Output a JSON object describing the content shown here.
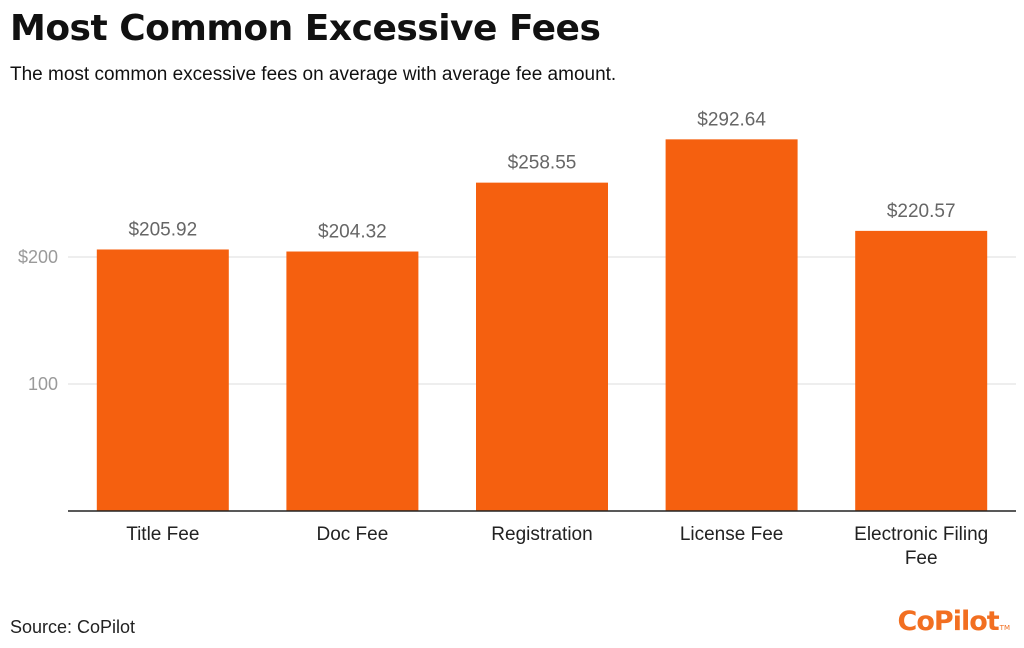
{
  "title": "Most Common Excessive Fees",
  "subtitle": "The most common excessive fees on average with average fee amount.",
  "source": "Source: CoPilot",
  "logo": {
    "text": "CoPilot",
    "tm": "TM",
    "color": "#f26f21"
  },
  "colors": {
    "bar": "#f5600f",
    "gridline": "#dddddd",
    "axis": "#222222"
  },
  "chart_data": {
    "type": "bar",
    "categories": [
      "Title Fee",
      "Doc Fee",
      "Registration",
      "License Fee",
      "Electronic Filing Fee"
    ],
    "category_lines": [
      [
        "Title Fee"
      ],
      [
        "Doc Fee"
      ],
      [
        "Registration"
      ],
      [
        "License Fee"
      ],
      [
        "Electronic Filing",
        "Fee"
      ]
    ],
    "values": [
      205.92,
      204.32,
      258.55,
      292.64,
      220.57
    ],
    "data_labels": [
      "$205.92",
      "$204.32",
      "$258.55",
      "$292.64",
      "$220.57"
    ],
    "yticks": [
      100,
      200
    ],
    "ytick_labels": [
      "100",
      "$200"
    ],
    "ylim": [
      0,
      300
    ],
    "grid": true,
    "legend": false
  }
}
